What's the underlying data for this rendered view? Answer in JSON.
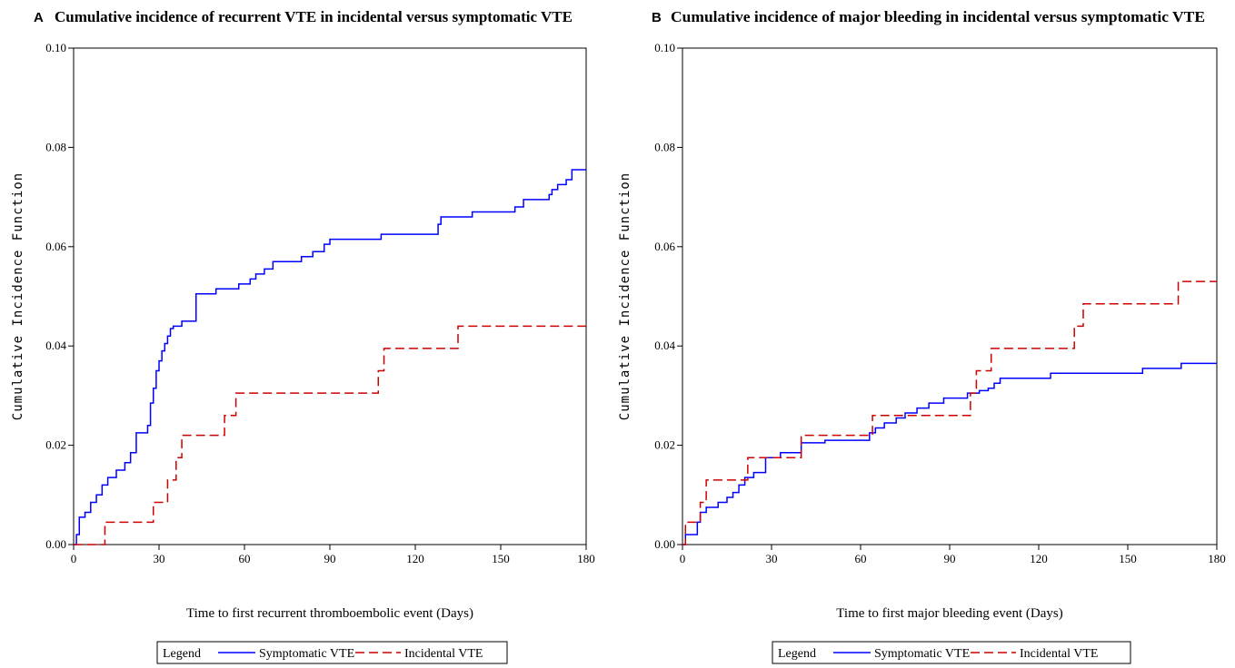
{
  "chart_data": [
    {
      "type": "line",
      "panel": "A",
      "title": "Cumulative incidence of recurrent VTE in incidental versus symptomatic VTE",
      "xlabel": "Time to first recurrent thromboembolic event (Days)",
      "ylabel": "Cumulative Incidence Function",
      "xlim": [
        0,
        180
      ],
      "ylim": [
        0,
        0.1
      ],
      "xticks": [
        "0",
        "30",
        "60",
        "90",
        "120",
        "150",
        "180"
      ],
      "yticks": [
        "0.00",
        "0.02",
        "0.04",
        "0.06",
        "0.08",
        "0.10"
      ],
      "grid": false,
      "legend": {
        "title": "Legend",
        "position": "bottom-center"
      },
      "series": [
        {
          "name": "Symptomatic VTE",
          "color": "#0000ff",
          "dash": "solid",
          "x": [
            0,
            1,
            2,
            4,
            6,
            8,
            10,
            12,
            15,
            18,
            20,
            22,
            26,
            27,
            28,
            29,
            30,
            31,
            32,
            33,
            34,
            35,
            38,
            43,
            50,
            58,
            62,
            64,
            67,
            70,
            80,
            84,
            88,
            90,
            100,
            108,
            128,
            129,
            140,
            155,
            158,
            167,
            168,
            170,
            173,
            175,
            180
          ],
          "y": [
            0,
            0.002,
            0.0055,
            0.0065,
            0.0085,
            0.01,
            0.012,
            0.0135,
            0.015,
            0.0165,
            0.0185,
            0.0225,
            0.024,
            0.0285,
            0.0315,
            0.035,
            0.037,
            0.039,
            0.0405,
            0.042,
            0.0435,
            0.044,
            0.045,
            0.0505,
            0.0515,
            0.0525,
            0.0535,
            0.0545,
            0.0555,
            0.057,
            0.058,
            0.059,
            0.0605,
            0.0615,
            0.0615,
            0.0625,
            0.0645,
            0.066,
            0.067,
            0.068,
            0.0695,
            0.0705,
            0.0715,
            0.0725,
            0.0735,
            0.0755,
            0.0755
          ]
        },
        {
          "name": "Incidental VTE",
          "color": "#cc0000",
          "dash": "dashed",
          "x": [
            0,
            11,
            28,
            33,
            36,
            38,
            53,
            57,
            107,
            109,
            135,
            180
          ],
          "y": [
            0,
            0.0045,
            0.0085,
            0.013,
            0.0175,
            0.022,
            0.026,
            0.0305,
            0.035,
            0.0395,
            0.044,
            0.044
          ]
        }
      ]
    },
    {
      "type": "line",
      "panel": "B",
      "title": "Cumulative incidence of major bleeding in incidental versus symptomatic VTE",
      "xlabel": "Time to first major bleeding event (Days)",
      "ylabel": "Cumulative Incidence Function",
      "xlim": [
        0,
        180
      ],
      "ylim": [
        0,
        0.1
      ],
      "xticks": [
        "0",
        "30",
        "60",
        "90",
        "120",
        "150",
        "180"
      ],
      "yticks": [
        "0.00",
        "0.02",
        "0.04",
        "0.06",
        "0.08",
        "0.10"
      ],
      "grid": false,
      "legend": {
        "title": "Legend",
        "position": "bottom-center"
      },
      "series": [
        {
          "name": "Symptomatic VTE",
          "color": "#0000ff",
          "dash": "solid",
          "x": [
            0,
            1,
            5,
            6,
            8,
            12,
            15,
            17,
            19,
            21,
            24,
            28,
            33,
            40,
            48,
            63,
            65,
            68,
            72,
            75,
            79,
            83,
            88,
            96,
            100,
            103,
            105,
            107,
            124,
            155,
            168,
            180
          ],
          "y": [
            0,
            0.002,
            0.0045,
            0.0065,
            0.0075,
            0.0085,
            0.0095,
            0.0105,
            0.012,
            0.0135,
            0.0145,
            0.0175,
            0.0185,
            0.0205,
            0.021,
            0.0225,
            0.0235,
            0.0245,
            0.0255,
            0.0265,
            0.0275,
            0.0285,
            0.0295,
            0.0305,
            0.031,
            0.0315,
            0.0325,
            0.0335,
            0.0345,
            0.0355,
            0.0365,
            0.0365
          ]
        },
        {
          "name": "Incidental VTE",
          "color": "#cc0000",
          "dash": "dashed",
          "x": [
            0,
            1,
            6,
            8,
            22,
            40,
            64,
            97,
            99,
            104,
            132,
            135,
            167,
            180
          ],
          "y": [
            0,
            0.0045,
            0.0085,
            0.013,
            0.0175,
            0.022,
            0.026,
            0.0305,
            0.035,
            0.0395,
            0.044,
            0.0485,
            0.053,
            0.053
          ]
        }
      ]
    }
  ],
  "panels": [
    {
      "letter": "A"
    },
    {
      "letter": "B"
    }
  ]
}
